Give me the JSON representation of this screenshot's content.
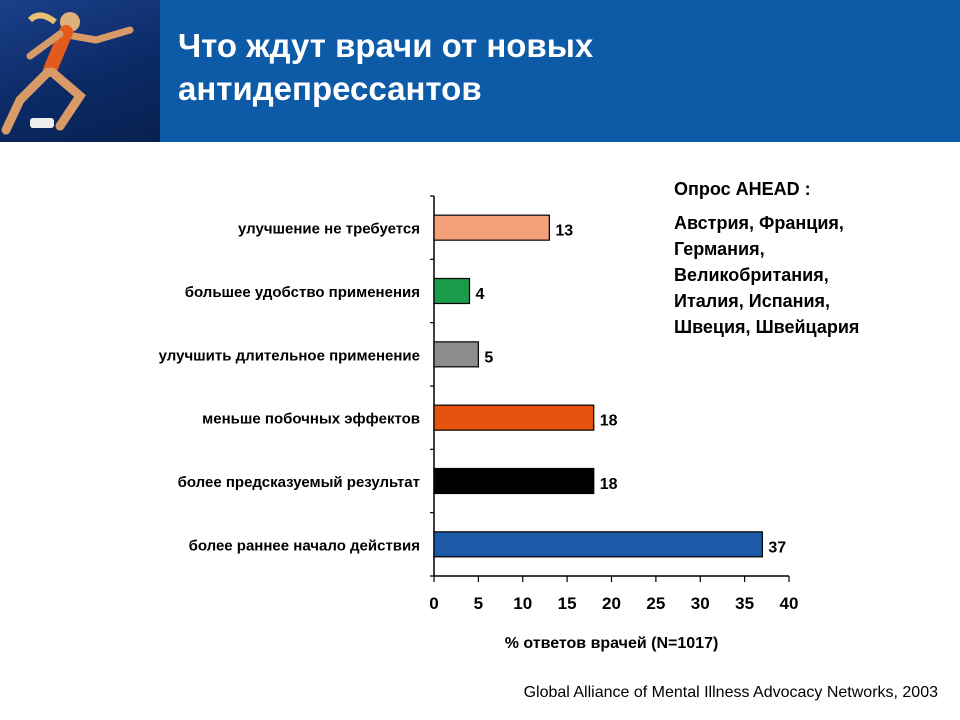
{
  "slide": {
    "title_line1": "Что ждут врачи от новых",
    "title_line2": "антидепрессантов",
    "survey_heading": "Опрос AHEAD :",
    "survey_countries": [
      "Австрия, Франция,",
      "Германия,",
      "Великобритания,",
      "Италия, Испания,",
      "Швеция, Швейцария"
    ],
    "source": "Global Alliance of Mental Illness Advocacy Networks,  2003"
  },
  "chart_data": {
    "type": "bar",
    "orientation": "horizontal",
    "categories": [
      "улучшение не требуется",
      "большее удобство применения",
      "улучшить длительное применение",
      "меньше побочных эффектов",
      "более предсказуемый результат",
      "более раннее начало действия"
    ],
    "values": [
      13,
      4,
      5,
      18,
      18,
      37
    ],
    "colors": [
      "#f4a07a",
      "#1a9c4a",
      "#8c8c8c",
      "#e8520f",
      "#000000",
      "#1c5aa8"
    ],
    "xlabel": "% ответов врачей (N=1017)",
    "xlim": [
      0,
      40
    ],
    "xticks": [
      0,
      5,
      10,
      15,
      20,
      25,
      30,
      35,
      40
    ],
    "data_labels": [
      "13",
      "4",
      "5",
      "18",
      "18",
      "37"
    ],
    "grid": false
  }
}
